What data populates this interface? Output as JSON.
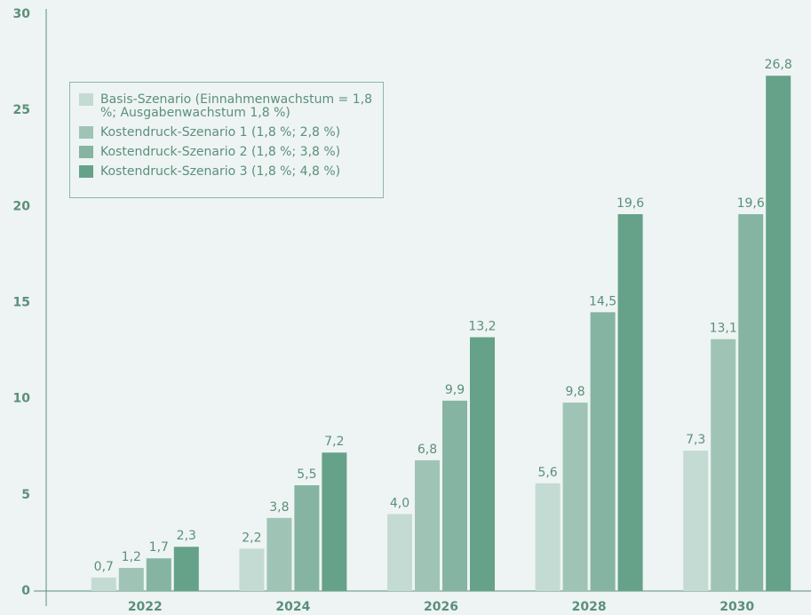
{
  "chart_data": {
    "type": "bar",
    "categories": [
      "2022",
      "2024",
      "2026",
      "2028",
      "2030"
    ],
    "series": [
      {
        "name": "Basis-Szenario (Einnahmenwachstum = 1,8 %; Ausgabenwachstum 1,8 %)",
        "color": "#c3dbd3",
        "values": [
          0.7,
          2.2,
          4.0,
          5.6,
          7.3
        ],
        "value_labels": [
          "0,7",
          "2,2",
          "4,0",
          "5,6",
          "7,3"
        ]
      },
      {
        "name": "Kostendruck-Szenario 1 (1,8 %; 2,8 %)",
        "color": "#9fc4b6",
        "values": [
          1.2,
          3.8,
          6.8,
          9.8,
          13.1
        ],
        "value_labels": [
          "1,2",
          "3,8",
          "6,8",
          "9,8",
          "13,1"
        ]
      },
      {
        "name": "Kostendruck-Szenario 2 (1,8 %; 3,8 %)",
        "color": "#85b5a2",
        "values": [
          1.7,
          5.5,
          9.9,
          14.5,
          19.6
        ],
        "value_labels": [
          "1,7",
          "5,5",
          "9,9",
          "14,5",
          "19,6"
        ]
      },
      {
        "name": "Kostendruck-Szenario 3 (1,8 %; 4,8 %)",
        "color": "#66a189",
        "values": [
          2.3,
          7.2,
          13.2,
          19.6,
          26.8
        ],
        "value_labels": [
          "2,3",
          "7,2",
          "13,2",
          "19,6",
          "26,8"
        ]
      }
    ],
    "ylim": [
      0,
      30
    ],
    "yticks": [
      0,
      5,
      10,
      15,
      20,
      25,
      30
    ],
    "grid": false,
    "legend": "upper left"
  }
}
